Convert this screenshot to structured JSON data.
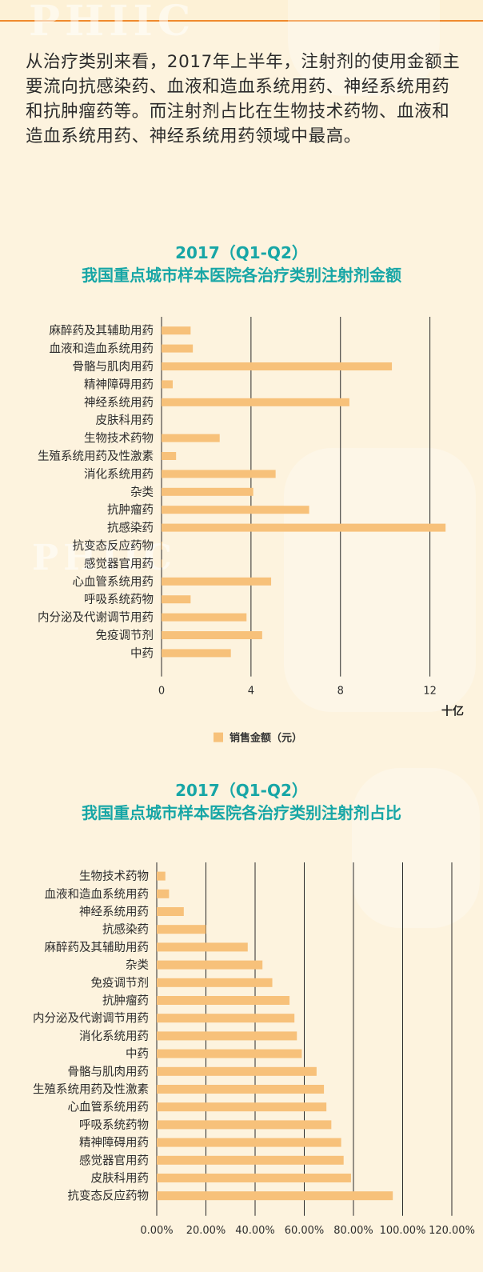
{
  "intro_text": "从治疗类别来看，2017年上半年，注射剂的使用金额主要流向抗感染药、血液和造血系统用药、神经系统用药和抗肿瘤药等。而注射剂占比在生物技术药物、血液和造血系统用药、神经系统用药领域中最高。",
  "watermark": "PHIIC",
  "colors": {
    "bar": "#f7c17a",
    "title": "#17a6a6",
    "grid": "#2a2a2a",
    "rule": "#f08a2e",
    "background": "#fdf3de"
  },
  "chart_data": [
    {
      "type": "bar",
      "orientation": "horizontal",
      "title": "2017（Q1-Q2）",
      "subtitle": "我国重点城市样本医院各治疗类别注射剂金额",
      "categories": [
        "麻醉药及其辅助用药",
        "血液和造血系统用药",
        "骨骼与肌肉用药",
        "精神障碍用药",
        "神经系统用药",
        "皮肤科用药",
        "生物技术药物",
        "生殖系统用药及性激素",
        "消化系统用药",
        "杂类",
        "抗肿瘤药",
        "抗感染药",
        "抗变态反应药物",
        "感觉器官用药",
        "心血管系统用药",
        "呼吸系统药物",
        "内分泌及代谢调节用药",
        "免疫调节剂",
        "中药"
      ],
      "series": [
        {
          "name": "销售金额（元）",
          "values": [
            1.3,
            1.4,
            10.3,
            0.5,
            8.4,
            0.0,
            2.6,
            0.65,
            5.1,
            4.1,
            6.6,
            12.7,
            0.03,
            0.03,
            4.9,
            1.3,
            3.8,
            4.5,
            3.1
          ]
        }
      ],
      "x_ticks": [
        "0",
        "4",
        "8",
        "12"
      ],
      "xlim": [
        0,
        12.8
      ],
      "unit": "十亿",
      "grid": true,
      "legend": "bottom"
    },
    {
      "type": "bar",
      "orientation": "horizontal",
      "title": "2017（Q1-Q2）",
      "subtitle": "我国重点城市样本医院各治疗类别注射剂占比",
      "categories": [
        "生物技术药物",
        "血液和造血系统用药",
        "神经系统用药",
        "抗感染药",
        "麻醉药及其辅助用药",
        "杂类",
        "免疫调节剂",
        "抗肿瘤药",
        "内分泌及代谢调节用药",
        "消化系统用药",
        "中药",
        "骨骼与肌肉用药",
        "生殖系统用药及性激素",
        "心血管系统用药",
        "呼吸系统药物",
        "精神障碍用药",
        "感觉器官用药",
        "皮肤科用药",
        "抗变态反应药物"
      ],
      "series": [
        {
          "values": [
            3.5,
            5.0,
            11.0,
            20.0,
            37.0,
            43.0,
            47.0,
            54.0,
            56.0,
            57.0,
            59.0,
            65.0,
            68.0,
            69.0,
            71.0,
            75.0,
            76.0,
            79.0,
            96.0
          ]
        }
      ],
      "x_ticks": [
        "0.00%",
        "20.00%",
        "40.00%",
        "60.00%",
        "80.00%",
        "100.00%",
        "120.00%"
      ],
      "xlim": [
        0,
        120
      ],
      "grid": true,
      "legend": "none"
    }
  ]
}
